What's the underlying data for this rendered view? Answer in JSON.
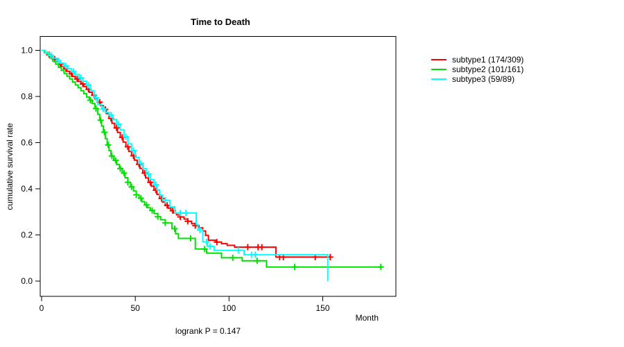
{
  "chart": {
    "title": "Time to Death",
    "xlabel": "Month",
    "ylabel": "cumulative survival rate",
    "logrank": "logrank P = 0.147"
  },
  "chart_data": {
    "type": "line",
    "variant": "kaplan-meier-step",
    "title": "Time to Death",
    "xlabel": "Month",
    "ylabel": "cumulative survival rate",
    "annotation": "logrank P = 0.147",
    "xlim": [
      0,
      189
    ],
    "ylim": [
      0,
      1
    ],
    "x_ticks": [
      0,
      50,
      100,
      150
    ],
    "y_ticks": [
      1.0,
      0.8,
      0.6,
      0.4,
      0.2,
      0.0
    ],
    "grid": false,
    "legend_position": "right-outside",
    "series": [
      {
        "name": "subtype1",
        "label": "subtype1 (174/309)",
        "events": 174,
        "n": 309,
        "color": "#FF0000",
        "end_time": 154.5,
        "drops_to_zero": false,
        "steps": [
          [
            0,
            1.0
          ],
          [
            1.5,
            0.99
          ],
          [
            3,
            0.981
          ],
          [
            4.5,
            0.971
          ],
          [
            6,
            0.962
          ],
          [
            7.5,
            0.952
          ],
          [
            9,
            0.941
          ],
          [
            10.5,
            0.93
          ],
          [
            12,
            0.92
          ],
          [
            13.5,
            0.909
          ],
          [
            15,
            0.898
          ],
          [
            16.5,
            0.887
          ],
          [
            18,
            0.876
          ],
          [
            19.5,
            0.865
          ],
          [
            21,
            0.854
          ],
          [
            22.5,
            0.843
          ],
          [
            24,
            0.831
          ],
          [
            25.5,
            0.818
          ],
          [
            27,
            0.805
          ],
          [
            28.5,
            0.79
          ],
          [
            30,
            0.775
          ],
          [
            31.5,
            0.76
          ],
          [
            33,
            0.744
          ],
          [
            34.5,
            0.726
          ],
          [
            36,
            0.705
          ],
          [
            37.5,
            0.684
          ],
          [
            39,
            0.664
          ],
          [
            40.5,
            0.644
          ],
          [
            42,
            0.623
          ],
          [
            43.5,
            0.602
          ],
          [
            45,
            0.582
          ],
          [
            46.5,
            0.562
          ],
          [
            48,
            0.543
          ],
          [
            49.5,
            0.524
          ],
          [
            51,
            0.506
          ],
          [
            52.5,
            0.488
          ],
          [
            54,
            0.468
          ],
          [
            55.5,
            0.447
          ],
          [
            57,
            0.428
          ],
          [
            58.5,
            0.411
          ],
          [
            60,
            0.394
          ],
          [
            61.5,
            0.376
          ],
          [
            63,
            0.358
          ],
          [
            64.5,
            0.342
          ],
          [
            66,
            0.328
          ],
          [
            67.5,
            0.316
          ],
          [
            69,
            0.305
          ],
          [
            70.5,
            0.295
          ],
          [
            72,
            0.287
          ],
          [
            74,
            0.278
          ],
          [
            76,
            0.269
          ],
          [
            78,
            0.259
          ],
          [
            80,
            0.249
          ],
          [
            82,
            0.24
          ],
          [
            84,
            0.231
          ],
          [
            86,
            0.217
          ],
          [
            87.5,
            0.198
          ],
          [
            89,
            0.177
          ],
          [
            93,
            0.169
          ],
          [
            96,
            0.162
          ],
          [
            99,
            0.155
          ],
          [
            103,
            0.147
          ],
          [
            125,
            0.104
          ]
        ],
        "censor_times": [
          4,
          7,
          10,
          13,
          16,
          19,
          22,
          25,
          28,
          31,
          34,
          37,
          40,
          43,
          46,
          49,
          52,
          55,
          58,
          61,
          64,
          67,
          70,
          74,
          78,
          82,
          93.5,
          110,
          115.5,
          117.5,
          127,
          129,
          146,
          154
        ]
      },
      {
        "name": "subtype2",
        "label": "subtype2 (101/161)",
        "events": 101,
        "n": 161,
        "color": "#00E000",
        "end_time": 181,
        "drops_to_zero": false,
        "steps": [
          [
            0,
            1.0
          ],
          [
            1.5,
            0.991
          ],
          [
            3,
            0.979
          ],
          [
            4.5,
            0.966
          ],
          [
            6,
            0.953
          ],
          [
            7.5,
            0.94
          ],
          [
            9,
            0.926
          ],
          [
            10.5,
            0.913
          ],
          [
            12,
            0.9
          ],
          [
            13.5,
            0.888
          ],
          [
            15,
            0.876
          ],
          [
            16.5,
            0.863
          ],
          [
            18,
            0.85
          ],
          [
            19.5,
            0.838
          ],
          [
            21,
            0.825
          ],
          [
            22.5,
            0.812
          ],
          [
            24,
            0.798
          ],
          [
            25.5,
            0.784
          ],
          [
            27,
            0.769
          ],
          [
            28.5,
            0.748
          ],
          [
            30,
            0.722
          ],
          [
            31,
            0.697
          ],
          [
            32,
            0.672
          ],
          [
            33,
            0.645
          ],
          [
            34,
            0.617
          ],
          [
            35,
            0.59
          ],
          [
            36,
            0.565
          ],
          [
            37,
            0.542
          ],
          [
            38.5,
            0.523
          ],
          [
            40,
            0.505
          ],
          [
            41.5,
            0.487
          ],
          [
            43,
            0.468
          ],
          [
            44.5,
            0.448
          ],
          [
            46,
            0.428
          ],
          [
            47.5,
            0.408
          ],
          [
            49,
            0.39
          ],
          [
            50.5,
            0.374
          ],
          [
            52,
            0.359
          ],
          [
            53.5,
            0.344
          ],
          [
            55,
            0.33
          ],
          [
            56.5,
            0.318
          ],
          [
            58,
            0.306
          ],
          [
            60,
            0.293
          ],
          [
            62,
            0.279
          ],
          [
            63.5,
            0.266
          ],
          [
            66,
            0.252
          ],
          [
            69.5,
            0.227
          ],
          [
            71.5,
            0.205
          ],
          [
            73,
            0.185
          ],
          [
            82,
            0.139
          ],
          [
            88,
            0.121
          ],
          [
            96,
            0.101
          ],
          [
            107,
            0.088
          ],
          [
            120,
            0.061
          ]
        ],
        "censor_times": [
          26,
          29,
          31.5,
          33.5,
          35.5,
          37.5,
          39.5,
          42,
          44,
          46,
          48,
          50.5,
          53,
          56,
          59,
          62,
          66,
          71,
          79.5,
          87,
          102,
          115,
          135,
          181
        ]
      },
      {
        "name": "subtype3",
        "label": "subtype3 (59/89)",
        "events": 59,
        "n": 89,
        "color": "#00FFFF",
        "end_time": 152.7,
        "drops_to_zero": true,
        "steps": [
          [
            0,
            1.0
          ],
          [
            2,
            0.989
          ],
          [
            4,
            0.978
          ],
          [
            6,
            0.966
          ],
          [
            8,
            0.955
          ],
          [
            10,
            0.944
          ],
          [
            12,
            0.932
          ],
          [
            14,
            0.92
          ],
          [
            16,
            0.908
          ],
          [
            18,
            0.895
          ],
          [
            20,
            0.881
          ],
          [
            22,
            0.866
          ],
          [
            24,
            0.85
          ],
          [
            26,
            0.825
          ],
          [
            28,
            0.795
          ],
          [
            30,
            0.765
          ],
          [
            32,
            0.745
          ],
          [
            34,
            0.731
          ],
          [
            36,
            0.72
          ],
          [
            38,
            0.7
          ],
          [
            40,
            0.68
          ],
          [
            42,
            0.655
          ],
          [
            44,
            0.625
          ],
          [
            46,
            0.595
          ],
          [
            48,
            0.565
          ],
          [
            50,
            0.536
          ],
          [
            52,
            0.51
          ],
          [
            54,
            0.487
          ],
          [
            56,
            0.463
          ],
          [
            58,
            0.44
          ],
          [
            60,
            0.418
          ],
          [
            61.5,
            0.395
          ],
          [
            63,
            0.372
          ],
          [
            64.5,
            0.35
          ],
          [
            68.5,
            0.322
          ],
          [
            71,
            0.295
          ],
          [
            82.5,
            0.245
          ],
          [
            83.5,
            0.221
          ],
          [
            86,
            0.17
          ],
          [
            88.5,
            0.15
          ],
          [
            92,
            0.133
          ],
          [
            108,
            0.114
          ]
        ],
        "censor_times": [
          5,
          9,
          13,
          17,
          21,
          25,
          29,
          33,
          37,
          41,
          45,
          49,
          53,
          57,
          61,
          66,
          74,
          77,
          84.5,
          88,
          90,
          105,
          112,
          114
        ]
      }
    ]
  }
}
